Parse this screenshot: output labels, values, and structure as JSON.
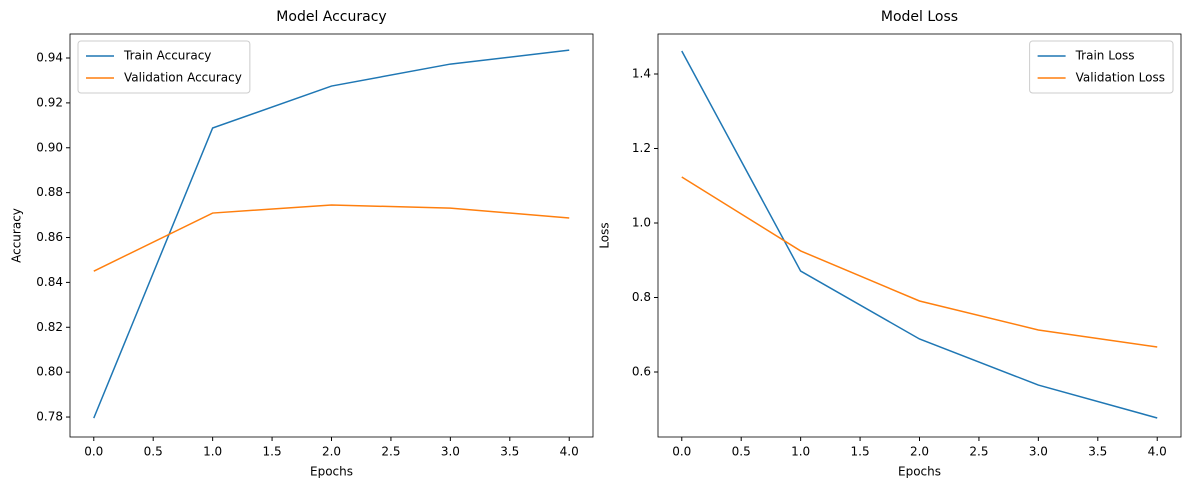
{
  "chart_data": [
    {
      "type": "line",
      "title": "Model Accuracy",
      "x_label": "Epochs",
      "y_label": "Accuracy",
      "x": [
        0,
        1,
        2,
        3,
        4
      ],
      "series": [
        {
          "name": "Train Accuracy",
          "color": "#1f77b4",
          "values": [
            0.7795,
            0.9088,
            0.9275,
            0.9373,
            0.9435
          ]
        },
        {
          "name": "Validation Accuracy",
          "color": "#ff7f0e",
          "values": [
            0.845,
            0.8709,
            0.8745,
            0.8731,
            0.8687
          ]
        }
      ],
      "xlim": [
        -0.2,
        4.2
      ],
      "xticks": [
        {
          "value": 0,
          "label": "0.0"
        },
        0.5,
        {
          "value": 1,
          "label": "1.0"
        },
        1.5,
        {
          "value": 2,
          "label": "2.0"
        },
        2.5,
        {
          "value": 3,
          "label": "3.0"
        },
        3.5,
        {
          "value": 4,
          "label": "4.0"
        }
      ],
      "ylim": [
        0.7711,
        0.9507
      ],
      "yticks": [
        0.78,
        {
          "value": 0.8,
          "label": "0.80"
        },
        0.82,
        0.84,
        0.86,
        0.88,
        {
          "value": 0.9,
          "label": "0.90"
        },
        0.92,
        0.94
      ],
      "legend": "upper-left"
    },
    {
      "type": "line",
      "title": "Model Loss",
      "x_label": "Epochs",
      "y_label": "Loss",
      "x": [
        0,
        1,
        2,
        3,
        4
      ],
      "series": [
        {
          "name": "Train Loss",
          "color": "#1f77b4",
          "values": [
            1.4617,
            0.871,
            0.6886,
            0.565,
            0.4765
          ]
        },
        {
          "name": "Validation Loss",
          "color": "#ff7f0e",
          "values": [
            1.1235,
            0.925,
            0.7906,
            0.7128,
            0.667
          ]
        }
      ],
      "xlim": [
        -0.2,
        4.2
      ],
      "xticks": [
        {
          "value": 0,
          "label": "0.0"
        },
        0.5,
        {
          "value": 1,
          "label": "1.0"
        },
        1.5,
        {
          "value": 2,
          "label": "2.0"
        },
        2.5,
        {
          "value": 3,
          "label": "3.0"
        },
        3.5,
        {
          "value": 4,
          "label": "4.0"
        }
      ],
      "ylim": [
        0.4255,
        1.5074
      ],
      "yticks": [
        0.6,
        0.8,
        {
          "value": 1,
          "label": "1.0"
        },
        1.2,
        1.4
      ],
      "legend": "upper-right"
    }
  ]
}
